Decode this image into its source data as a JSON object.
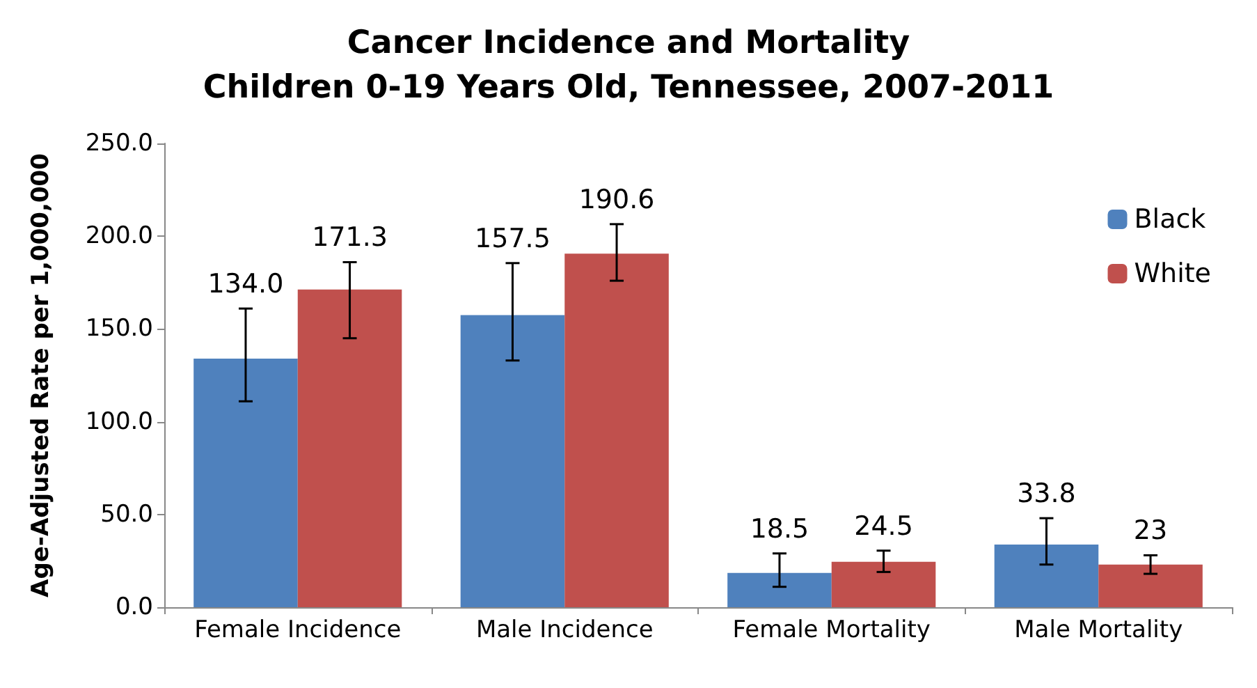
{
  "chart_data": {
    "type": "bar",
    "title": "Cancer Incidence and Mortality\nChildren 0-19 Years Old, Tennessee, 2007-2011",
    "ylabel": "Age-Adjusted Rate per 1,000,000",
    "categories": [
      "Female Incidence",
      "Male Incidence",
      "Female Mortality",
      "Male Mortality"
    ],
    "series": [
      {
        "name": "Black",
        "color": "#4f81bd",
        "values": [
          134.0,
          157.5,
          18.5,
          33.8
        ],
        "value_labels": [
          "134.0",
          "157.5",
          "18.5",
          "33.8"
        ],
        "errors": [
          [
            111,
            161
          ],
          [
            133,
            185.5
          ],
          [
            11,
            29
          ],
          [
            23,
            48
          ]
        ]
      },
      {
        "name": "White",
        "color": "#c0504d",
        "values": [
          171.3,
          190.6,
          24.5,
          23
        ],
        "value_labels": [
          "171.3",
          "190.6",
          "24.5",
          "23"
        ],
        "errors": [
          [
            145,
            186
          ],
          [
            176,
            206.5
          ],
          [
            19,
            30.5
          ],
          [
            18,
            28
          ]
        ]
      }
    ],
    "ylim": [
      0,
      250
    ],
    "yticks": [
      {
        "value": 0,
        "label": "0.0"
      },
      {
        "value": 50,
        "label": "50.0"
      },
      {
        "value": 100,
        "label": "100.0"
      },
      {
        "value": 150,
        "label": "150.0"
      },
      {
        "value": 200,
        "label": "200.0"
      },
      {
        "value": 250,
        "label": "250.0"
      }
    ],
    "grid": false,
    "legend": "top right"
  }
}
